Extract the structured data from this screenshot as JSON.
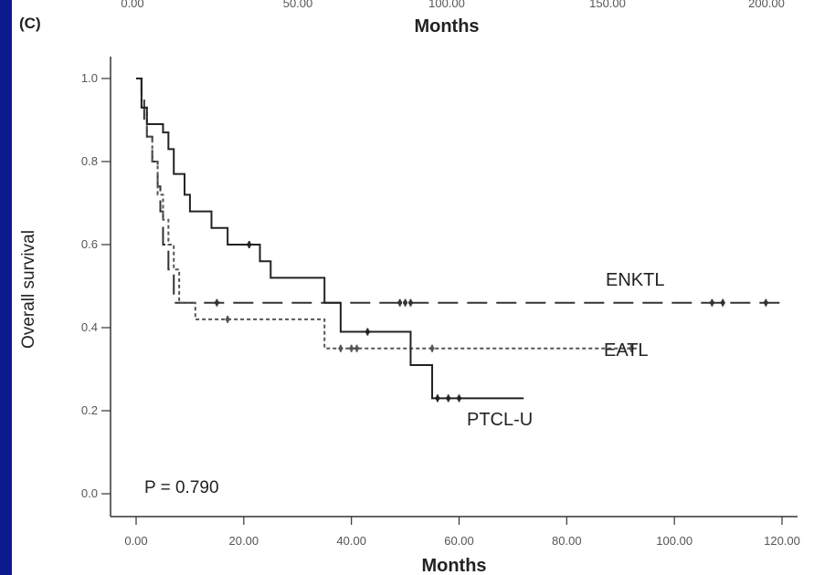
{
  "top_fragment": {
    "tick_labels": [
      "0.00",
      "50.00",
      "100.00",
      "150.00",
      "200.00"
    ],
    "xlabel": "Months"
  },
  "panel_label": "(C)",
  "chart_data": {
    "type": "line",
    "title": "",
    "xlabel": "Months",
    "ylabel": "Overall survival",
    "xlim": [
      0,
      120
    ],
    "ylim": [
      0,
      1.0
    ],
    "x_ticks": [
      "0.00",
      "20.00",
      "40.00",
      "60.00",
      "80.00",
      "100.00",
      "120.00"
    ],
    "y_ticks": [
      "0.0",
      "0.2",
      "0.4",
      "0.6",
      "0.8",
      "1.0"
    ],
    "annotation": "P = 0.790",
    "series": [
      {
        "name": "ENKTL",
        "line_style": "long-dash",
        "color": "#333333",
        "points": [
          [
            0,
            1.0
          ],
          [
            1,
            0.96
          ],
          [
            1.5,
            0.9
          ],
          [
            2,
            0.86
          ],
          [
            3,
            0.8
          ],
          [
            4,
            0.74
          ],
          [
            4.5,
            0.68
          ],
          [
            5,
            0.6
          ],
          [
            6,
            0.54
          ],
          [
            7,
            0.46
          ],
          [
            120,
            0.46
          ]
        ],
        "censor_x": [
          15,
          49,
          50,
          51,
          107,
          109,
          117
        ]
      },
      {
        "name": "EATL",
        "line_style": "short-dash",
        "color": "#555555",
        "points": [
          [
            0,
            1.0
          ],
          [
            1,
            0.93
          ],
          [
            2,
            0.86
          ],
          [
            3,
            0.8
          ],
          [
            4,
            0.72
          ],
          [
            5,
            0.66
          ],
          [
            6,
            0.6
          ],
          [
            7,
            0.54
          ],
          [
            8,
            0.46
          ],
          [
            11,
            0.42
          ],
          [
            35,
            0.42
          ],
          [
            35,
            0.35
          ],
          [
            93,
            0.35
          ]
        ],
        "censor_x": [
          17,
          38,
          40,
          41,
          55,
          92
        ]
      },
      {
        "name": "PTCL-U",
        "line_style": "solid",
        "color": "#222222",
        "points": [
          [
            0,
            1.0
          ],
          [
            1,
            0.93
          ],
          [
            2,
            0.89
          ],
          [
            5,
            0.87
          ],
          [
            6,
            0.83
          ],
          [
            7,
            0.77
          ],
          [
            9,
            0.72
          ],
          [
            10,
            0.68
          ],
          [
            14,
            0.64
          ],
          [
            17,
            0.6
          ],
          [
            23,
            0.56
          ],
          [
            25,
            0.52
          ],
          [
            35,
            0.52
          ],
          [
            35,
            0.46
          ],
          [
            38,
            0.46
          ],
          [
            38,
            0.39
          ],
          [
            51,
            0.39
          ],
          [
            51,
            0.31
          ],
          [
            55,
            0.31
          ],
          [
            55,
            0.23
          ],
          [
            72,
            0.23
          ]
        ],
        "censor_x": [
          21,
          43,
          56,
          58,
          60
        ]
      }
    ]
  }
}
